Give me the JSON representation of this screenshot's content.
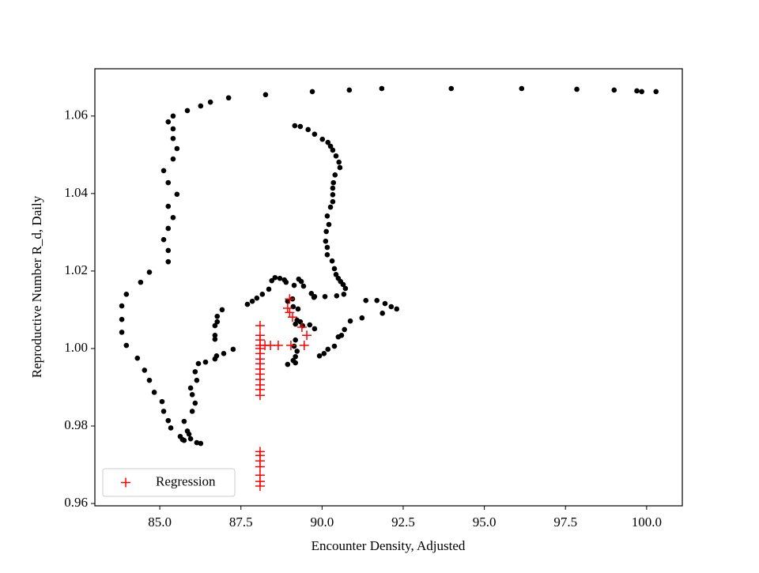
{
  "chart_data": {
    "type": "scatter",
    "xlabel": "Encounter Density, Adjusted",
    "ylabel": "Reproductive Number R_d, Daily",
    "xlim": [
      83.0,
      101.1
    ],
    "ylim": [
      0.9594,
      1.0722
    ],
    "xticks": [
      {
        "value": 85,
        "label": "85.0"
      },
      {
        "value": 87.5,
        "label": "87.5"
      },
      {
        "value": 90,
        "label": "90.0"
      },
      {
        "value": 92.5,
        "label": "92.5"
      },
      {
        "value": 95,
        "label": "95.0"
      },
      {
        "value": 97.5,
        "label": "97.5"
      },
      {
        "value": 100,
        "label": "100.0"
      }
    ],
    "yticks": [
      0.96,
      0.98,
      {
        "value": 1,
        "label": "1.00"
      },
      1.02,
      1.04,
      1.06
    ],
    "legend": "lower left",
    "series": [
      {
        "color": "#000000",
        "marker": "dot",
        "x": [
          100.29,
          99.85,
          99.7,
          99.0,
          97.85,
          96.15,
          93.98,
          91.84,
          90.84,
          89.7,
          88.26,
          87.12,
          86.56,
          86.26,
          85.85,
          85.41,
          85.26,
          85.41,
          85.41,
          85.53,
          85.41,
          85.12,
          85.26,
          85.53,
          85.26,
          85.41,
          85.26,
          85.12,
          85.26,
          85.26,
          84.68,
          84.41,
          83.97,
          83.83,
          83.83,
          83.83,
          83.97,
          84.31,
          84.53,
          84.68,
          84.83,
          85.07,
          85.12,
          85.26,
          85.34,
          85.63,
          85.7,
          85.75,
          85.95,
          86.14,
          86.26,
          85.75,
          85.85,
          85.9,
          86.0,
          86.09,
          86.0,
          85.95,
          86.14,
          86.09,
          86.19,
          86.41,
          86.7,
          86.75,
          86.97,
          87.26,
          86.7,
          86.7,
          86.7,
          86.77,
          86.92,
          86.77,
          87.7,
          87.85,
          87.99,
          88.16,
          88.36,
          88.55,
          88.7,
          88.84,
          88.45,
          88.89,
          89.14,
          89.28,
          89.36,
          89.43,
          89.67,
          89.75,
          89.09,
          88.94,
          89.11,
          89.26,
          89.23,
          89.4,
          89.18,
          89.33,
          89.62,
          89.77,
          89.18,
          89.14,
          89.23,
          89.18,
          89.11,
          89.18,
          88.94,
          89.92,
          90.06,
          90.18,
          90.38,
          90.5,
          90.6,
          90.69,
          90.87,
          91.23,
          91.86,
          91.35,
          91.69,
          91.94,
          92.13,
          92.3,
          89.16,
          89.33,
          89.57,
          89.77,
          90.01,
          90.18,
          90.26,
          90.33,
          90.43,
          90.52,
          90.55,
          90.4,
          90.35,
          90.33,
          90.33,
          90.33,
          90.26,
          90.16,
          90.21,
          90.13,
          90.11,
          90.16,
          90.16,
          90.31,
          90.38,
          90.43,
          90.5,
          90.57,
          90.65,
          90.72,
          90.67,
          90.45,
          90.09,
          89.77
        ],
        "y": [
          1.0663,
          1.0663,
          1.0665,
          1.0667,
          1.0669,
          1.0671,
          1.0671,
          1.0671,
          1.0667,
          1.0663,
          1.0655,
          1.0647,
          1.0636,
          1.0626,
          1.0614,
          1.06,
          1.0585,
          1.0567,
          1.0542,
          1.0516,
          1.0489,
          1.0459,
          1.0428,
          1.0398,
          1.0367,
          1.0338,
          1.031,
          1.0281,
          1.0253,
          1.0224,
          1.0197,
          1.0171,
          1.014,
          1.011,
          1.0075,
          1.0042,
          1.0008,
          0.9975,
          0.9944,
          0.9918,
          0.9887,
          0.9863,
          0.9838,
          0.9814,
          0.9795,
          0.9773,
          0.9765,
          0.9763,
          0.9767,
          0.9757,
          0.9755,
          0.9812,
          0.9787,
          0.9779,
          0.9838,
          0.9859,
          0.9881,
          0.9898,
          0.9918,
          0.994,
          0.9961,
          0.9965,
          0.9973,
          0.9981,
          0.9987,
          0.9998,
          1.0024,
          1.0034,
          1.0059,
          1.0083,
          1.01,
          1.0069,
          1.0114,
          1.0122,
          1.013,
          1.014,
          1.0153,
          1.0183,
          1.0181,
          1.0177,
          1.0175,
          1.0171,
          1.0163,
          1.0179,
          1.0173,
          1.0161,
          1.0142,
          1.0132,
          1.0128,
          1.0122,
          1.0108,
          1.0102,
          1.0073,
          1.0059,
          1.0063,
          1.0069,
          1.0061,
          1.0051,
          1.0022,
          1.0006,
          0.9993,
          0.9979,
          0.9969,
          0.9963,
          0.9959,
          0.9981,
          0.9987,
          0.9998,
          1.0006,
          1.003,
          1.0034,
          1.0049,
          1.0071,
          1.0079,
          1.0091,
          1.0124,
          1.0124,
          1.0116,
          1.0108,
          1.0102,
          1.0575,
          1.0573,
          1.0565,
          1.0553,
          1.054,
          1.0532,
          1.0522,
          1.0512,
          1.0497,
          1.0481,
          1.0467,
          1.0448,
          1.0428,
          1.0414,
          1.0397,
          1.0379,
          1.0365,
          1.0342,
          1.032,
          1.0302,
          1.0277,
          1.0261,
          1.0242,
          1.0226,
          1.0206,
          1.0191,
          1.0181,
          1.0173,
          1.0165,
          1.0155,
          1.014,
          1.0136,
          1.0134,
          1.0134
        ]
      },
      {
        "name": "Regression",
        "color": "#ff0000",
        "marker": "plus",
        "x": [
          88.09,
          88.09,
          88.09,
          88.09,
          88.09,
          88.09,
          88.09,
          88.09,
          88.09,
          88.09,
          88.09,
          88.09,
          88.09,
          88.09,
          88.09,
          88.09,
          88.09,
          88.09,
          88.09,
          88.09,
          88.09,
          88.24,
          88.41,
          88.65,
          89.0,
          89.09,
          89.04,
          89.38,
          89.53,
          89.45,
          89.0,
          88.94
        ],
        "y": [
          1.0059,
          1.0034,
          1.0022,
          1.0008,
          1.0,
          0.9987,
          0.9973,
          0.9961,
          0.9947,
          0.9934,
          0.992,
          0.9906,
          0.9894,
          0.9879,
          0.9734,
          0.9724,
          0.971,
          0.9695,
          0.9673,
          0.9657,
          0.9645,
          1.0008,
          1.0008,
          1.0008,
          1.0093,
          1.0081,
          1.0008,
          1.0055,
          1.0034,
          1.0008,
          1.0128,
          1.0104
        ]
      }
    ]
  }
}
